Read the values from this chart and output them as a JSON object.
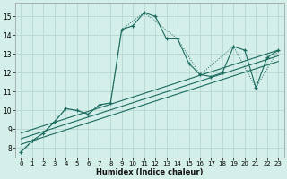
{
  "xlabel": "Humidex (Indice chaleur)",
  "bg_color": "#d4eeea",
  "grid_color": "#b8d8d4",
  "line_color": "#1a6b5e",
  "xlim": [
    -0.5,
    23.5
  ],
  "ylim": [
    7.5,
    15.7
  ],
  "yticks": [
    8,
    9,
    10,
    11,
    12,
    13,
    14,
    15
  ],
  "xticks": [
    0,
    1,
    2,
    3,
    4,
    5,
    6,
    7,
    8,
    9,
    10,
    11,
    12,
    13,
    14,
    15,
    16,
    17,
    18,
    19,
    20,
    21,
    22,
    23
  ],
  "main_x": [
    0,
    1,
    2,
    3,
    4,
    5,
    6,
    7,
    8,
    9,
    10,
    11,
    12,
    13,
    14,
    15,
    16,
    17,
    18,
    19,
    20,
    21,
    22,
    23
  ],
  "main_y": [
    7.8,
    8.4,
    8.8,
    9.4,
    10.1,
    10.0,
    9.8,
    10.3,
    10.4,
    14.3,
    14.5,
    15.2,
    15.0,
    13.8,
    13.8,
    12.5,
    11.9,
    11.8,
    12.0,
    13.4,
    13.2,
    11.2,
    12.8,
    13.2
  ],
  "dotted_x": [
    0,
    2,
    4,
    5,
    6,
    7,
    8,
    9,
    11,
    14,
    16,
    19,
    21,
    23
  ],
  "dotted_y": [
    7.8,
    8.8,
    10.1,
    10.0,
    9.8,
    10.3,
    10.4,
    14.3,
    15.2,
    13.8,
    11.9,
    13.4,
    11.2,
    13.2
  ],
  "trend_lines": [
    {
      "x": [
        0,
        23
      ],
      "y": [
        8.8,
        13.2
      ]
    },
    {
      "x": [
        0,
        23
      ],
      "y": [
        8.5,
        12.9
      ]
    },
    {
      "x": [
        0,
        23
      ],
      "y": [
        8.2,
        12.6
      ]
    }
  ]
}
